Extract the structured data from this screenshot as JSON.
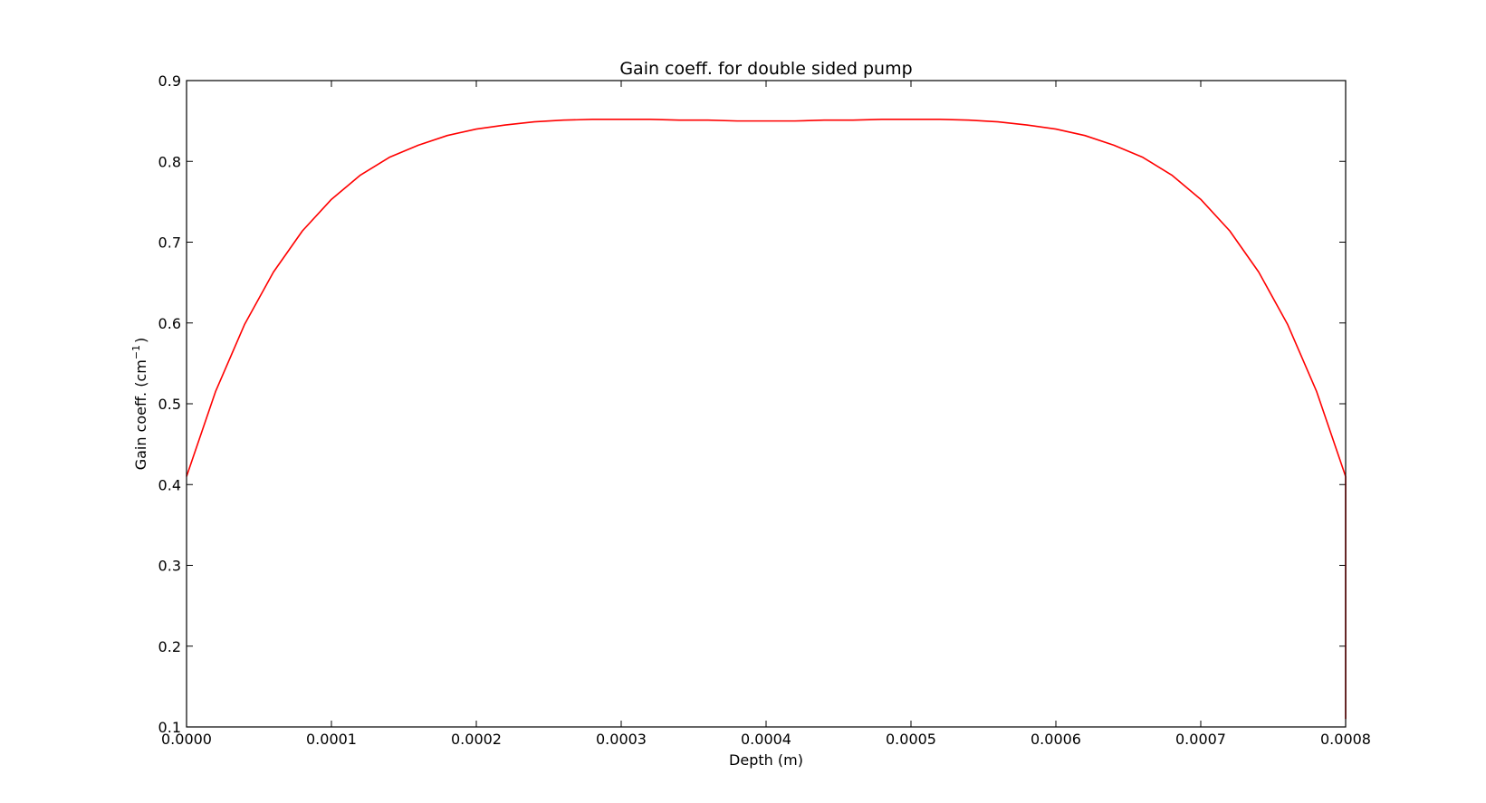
{
  "chart_data": {
    "type": "line",
    "title": "Gain coeff. for double sided pump",
    "xlabel": "Depth (m)",
    "ylabel": {
      "base": "Gain coeff. (cm",
      "superscript": "−1",
      "close": ")"
    },
    "xlim": [
      0,
      0.0008
    ],
    "ylim": [
      0.1,
      0.9
    ],
    "xticks": [
      0,
      0.0001,
      0.0002,
      0.0003,
      0.0004,
      0.0005,
      0.0006,
      0.0007,
      0.0008
    ],
    "xtick_labels": [
      "0.0000",
      "0.0001",
      "0.0002",
      "0.0003",
      "0.0004",
      "0.0005",
      "0.0006",
      "0.0007",
      "0.0008"
    ],
    "yticks": [
      0.1,
      0.2,
      0.3,
      0.4,
      0.5,
      0.6,
      0.7,
      0.8,
      0.9
    ],
    "ytick_labels": [
      "0.1",
      "0.2",
      "0.3",
      "0.4",
      "0.5",
      "0.6",
      "0.7",
      "0.8",
      "0.9"
    ],
    "grid": false,
    "series": [
      {
        "color": "#ff0000",
        "x": [
          0,
          2e-05,
          4e-05,
          6e-05,
          8e-05,
          0.0001,
          0.00012,
          0.00014,
          0.00016,
          0.00018,
          0.0002,
          0.00022,
          0.00024,
          0.00026,
          0.00028,
          0.0003,
          0.00032,
          0.00034,
          0.00036,
          0.00038,
          0.0004,
          0.00042,
          0.00044,
          0.00046,
          0.00048,
          0.0005,
          0.00052,
          0.00054,
          0.00056,
          0.00058,
          0.0006,
          0.00062,
          0.00064,
          0.00066,
          0.00068,
          0.0007,
          0.00072,
          0.00074,
          0.00076,
          0.00078,
          0.0008,
          0.0008
        ],
        "y": [
          0.41,
          0.515,
          0.598,
          0.663,
          0.714,
          0.753,
          0.783,
          0.805,
          0.82,
          0.832,
          0.84,
          0.845,
          0.849,
          0.851,
          0.852,
          0.852,
          0.852,
          0.851,
          0.851,
          0.85,
          0.85,
          0.85,
          0.851,
          0.851,
          0.852,
          0.852,
          0.852,
          0.851,
          0.849,
          0.845,
          0.84,
          0.832,
          0.82,
          0.805,
          0.783,
          0.753,
          0.714,
          0.663,
          0.598,
          0.515,
          0.41,
          0.11
        ]
      }
    ]
  }
}
